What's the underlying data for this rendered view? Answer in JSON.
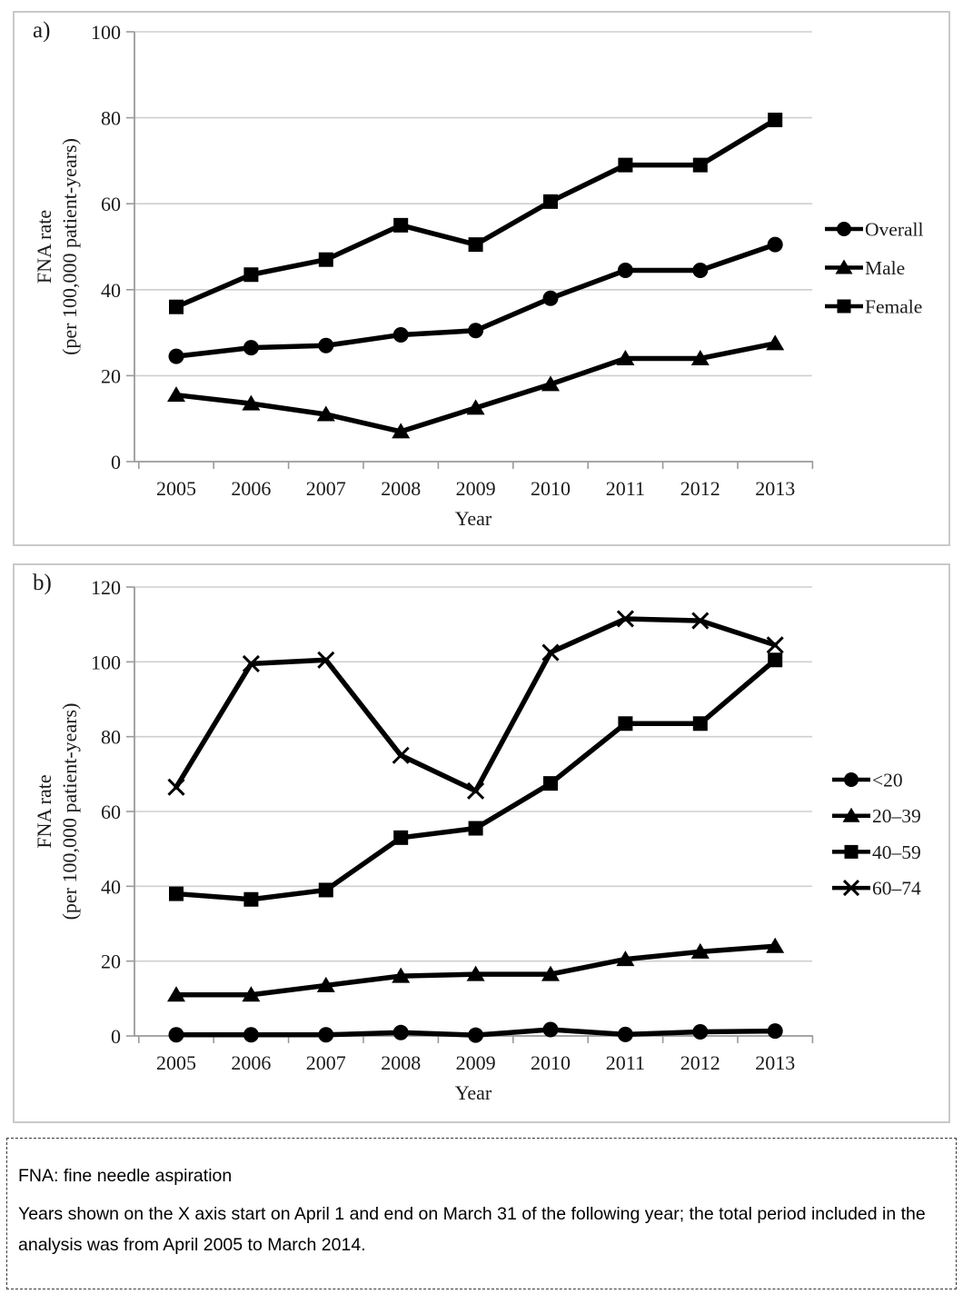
{
  "panels": {
    "a": {
      "label": "a)"
    },
    "b": {
      "label": "b)"
    }
  },
  "footnote": {
    "line1": "FNA: fine needle aspiration",
    "line2": "Years shown on the X axis start on April 1 and end on March 31 of the following year; the total period included in the analysis was from April 2005 to March 2014."
  },
  "colors": {
    "series": "#000000",
    "gridline": "#cfcfcf",
    "axis": "#9a9a9a",
    "panel_border": "#c9c9c9"
  },
  "chart_data": [
    {
      "id": "a",
      "type": "line",
      "title": "",
      "xlabel": "Year",
      "ylabel_line1": "FNA rate",
      "ylabel_line2": "(per 100,000 patient-years)",
      "categories": [
        "2005",
        "2006",
        "2007",
        "2008",
        "2009",
        "2010",
        "2011",
        "2012",
        "2013"
      ],
      "ylim": [
        0,
        100
      ],
      "yticks": [
        0,
        20,
        40,
        60,
        80,
        100
      ],
      "grid": true,
      "legend_position": "right",
      "series": [
        {
          "name": "Overall",
          "marker": "circle",
          "values": [
            24.5,
            26.5,
            27,
            29.5,
            30.5,
            38,
            44.5,
            44.5,
            50.5
          ]
        },
        {
          "name": "Male",
          "marker": "triangle",
          "values": [
            15.5,
            13.5,
            11,
            7,
            12.5,
            18,
            24,
            24,
            27.5
          ]
        },
        {
          "name": "Female",
          "marker": "square",
          "values": [
            36,
            43.5,
            47,
            55,
            50.5,
            60.5,
            69,
            69,
            79.5
          ]
        }
      ]
    },
    {
      "id": "b",
      "type": "line",
      "title": "",
      "xlabel": "Year",
      "ylabel_line1": "FNA rate",
      "ylabel_line2": "(per 100,000 patient-years)",
      "categories": [
        "2005",
        "2006",
        "2007",
        "2008",
        "2009",
        "2010",
        "2011",
        "2012",
        "2013"
      ],
      "ylim": [
        0,
        120
      ],
      "yticks": [
        0,
        20,
        40,
        60,
        80,
        100,
        120
      ],
      "grid": true,
      "legend_position": "right",
      "series": [
        {
          "name": "<20",
          "marker": "circle",
          "values": [
            0.3,
            0.3,
            0.3,
            0.9,
            0.2,
            1.7,
            0.4,
            1.1,
            1.3
          ]
        },
        {
          "name": "20–39",
          "marker": "triangle",
          "values": [
            11,
            11,
            13.5,
            16,
            16.5,
            16.5,
            20.5,
            22.5,
            24
          ]
        },
        {
          "name": "40–59",
          "marker": "square",
          "values": [
            38,
            36.5,
            39,
            53,
            55.5,
            67.5,
            83.5,
            83.5,
            100.5
          ]
        },
        {
          "name": "60–74",
          "marker": "x",
          "values": [
            66.5,
            99.5,
            100.5,
            75,
            65.5,
            102.5,
            111.5,
            111,
            104.5
          ]
        }
      ]
    }
  ]
}
